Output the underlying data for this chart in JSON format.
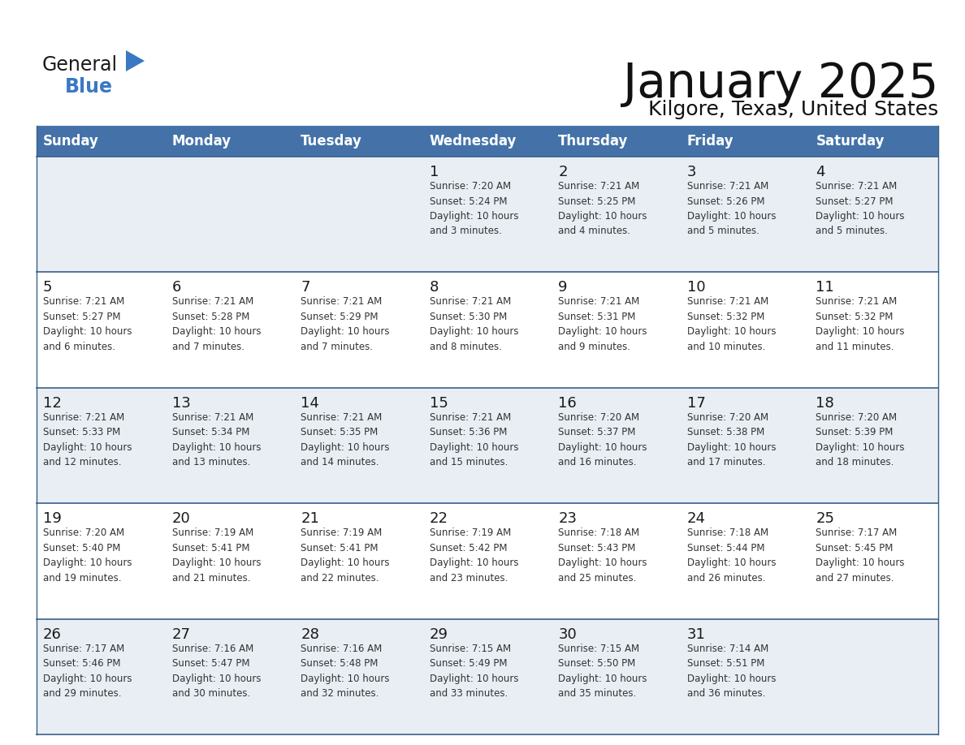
{
  "title": "January 2025",
  "subtitle": "Kilgore, Texas, United States",
  "header_bg": "#4472a8",
  "header_text": "#ffffff",
  "row_bg_odd": "#ffffff",
  "row_bg_even": "#e8eef4",
  "row_border_color": "#3a5f8a",
  "grid_color": "#3a5f8a",
  "day_number_color": "#1a1a1a",
  "info_text_color": "#333333",
  "days_of_week": [
    "Sunday",
    "Monday",
    "Tuesday",
    "Wednesday",
    "Thursday",
    "Friday",
    "Saturday"
  ],
  "weeks": [
    [
      {
        "day": "",
        "info": ""
      },
      {
        "day": "",
        "info": ""
      },
      {
        "day": "",
        "info": ""
      },
      {
        "day": "1",
        "info": "Sunrise: 7:20 AM\nSunset: 5:24 PM\nDaylight: 10 hours\nand 3 minutes."
      },
      {
        "day": "2",
        "info": "Sunrise: 7:21 AM\nSunset: 5:25 PM\nDaylight: 10 hours\nand 4 minutes."
      },
      {
        "day": "3",
        "info": "Sunrise: 7:21 AM\nSunset: 5:26 PM\nDaylight: 10 hours\nand 5 minutes."
      },
      {
        "day": "4",
        "info": "Sunrise: 7:21 AM\nSunset: 5:27 PM\nDaylight: 10 hours\nand 5 minutes."
      }
    ],
    [
      {
        "day": "5",
        "info": "Sunrise: 7:21 AM\nSunset: 5:27 PM\nDaylight: 10 hours\nand 6 minutes."
      },
      {
        "day": "6",
        "info": "Sunrise: 7:21 AM\nSunset: 5:28 PM\nDaylight: 10 hours\nand 7 minutes."
      },
      {
        "day": "7",
        "info": "Sunrise: 7:21 AM\nSunset: 5:29 PM\nDaylight: 10 hours\nand 7 minutes."
      },
      {
        "day": "8",
        "info": "Sunrise: 7:21 AM\nSunset: 5:30 PM\nDaylight: 10 hours\nand 8 minutes."
      },
      {
        "day": "9",
        "info": "Sunrise: 7:21 AM\nSunset: 5:31 PM\nDaylight: 10 hours\nand 9 minutes."
      },
      {
        "day": "10",
        "info": "Sunrise: 7:21 AM\nSunset: 5:32 PM\nDaylight: 10 hours\nand 10 minutes."
      },
      {
        "day": "11",
        "info": "Sunrise: 7:21 AM\nSunset: 5:32 PM\nDaylight: 10 hours\nand 11 minutes."
      }
    ],
    [
      {
        "day": "12",
        "info": "Sunrise: 7:21 AM\nSunset: 5:33 PM\nDaylight: 10 hours\nand 12 minutes."
      },
      {
        "day": "13",
        "info": "Sunrise: 7:21 AM\nSunset: 5:34 PM\nDaylight: 10 hours\nand 13 minutes."
      },
      {
        "day": "14",
        "info": "Sunrise: 7:21 AM\nSunset: 5:35 PM\nDaylight: 10 hours\nand 14 minutes."
      },
      {
        "day": "15",
        "info": "Sunrise: 7:21 AM\nSunset: 5:36 PM\nDaylight: 10 hours\nand 15 minutes."
      },
      {
        "day": "16",
        "info": "Sunrise: 7:20 AM\nSunset: 5:37 PM\nDaylight: 10 hours\nand 16 minutes."
      },
      {
        "day": "17",
        "info": "Sunrise: 7:20 AM\nSunset: 5:38 PM\nDaylight: 10 hours\nand 17 minutes."
      },
      {
        "day": "18",
        "info": "Sunrise: 7:20 AM\nSunset: 5:39 PM\nDaylight: 10 hours\nand 18 minutes."
      }
    ],
    [
      {
        "day": "19",
        "info": "Sunrise: 7:20 AM\nSunset: 5:40 PM\nDaylight: 10 hours\nand 19 minutes."
      },
      {
        "day": "20",
        "info": "Sunrise: 7:19 AM\nSunset: 5:41 PM\nDaylight: 10 hours\nand 21 minutes."
      },
      {
        "day": "21",
        "info": "Sunrise: 7:19 AM\nSunset: 5:41 PM\nDaylight: 10 hours\nand 22 minutes."
      },
      {
        "day": "22",
        "info": "Sunrise: 7:19 AM\nSunset: 5:42 PM\nDaylight: 10 hours\nand 23 minutes."
      },
      {
        "day": "23",
        "info": "Sunrise: 7:18 AM\nSunset: 5:43 PM\nDaylight: 10 hours\nand 25 minutes."
      },
      {
        "day": "24",
        "info": "Sunrise: 7:18 AM\nSunset: 5:44 PM\nDaylight: 10 hours\nand 26 minutes."
      },
      {
        "day": "25",
        "info": "Sunrise: 7:17 AM\nSunset: 5:45 PM\nDaylight: 10 hours\nand 27 minutes."
      }
    ],
    [
      {
        "day": "26",
        "info": "Sunrise: 7:17 AM\nSunset: 5:46 PM\nDaylight: 10 hours\nand 29 minutes."
      },
      {
        "day": "27",
        "info": "Sunrise: 7:16 AM\nSunset: 5:47 PM\nDaylight: 10 hours\nand 30 minutes."
      },
      {
        "day": "28",
        "info": "Sunrise: 7:16 AM\nSunset: 5:48 PM\nDaylight: 10 hours\nand 32 minutes."
      },
      {
        "day": "29",
        "info": "Sunrise: 7:15 AM\nSunset: 5:49 PM\nDaylight: 10 hours\nand 33 minutes."
      },
      {
        "day": "30",
        "info": "Sunrise: 7:15 AM\nSunset: 5:50 PM\nDaylight: 10 hours\nand 35 minutes."
      },
      {
        "day": "31",
        "info": "Sunrise: 7:14 AM\nSunset: 5:51 PM\nDaylight: 10 hours\nand 36 minutes."
      },
      {
        "day": "",
        "info": ""
      }
    ]
  ],
  "logo_text_general": "General",
  "logo_text_blue": "Blue",
  "logo_color_general": "#1a1a1a",
  "logo_color_blue": "#3a78c4",
  "logo_triangle_color": "#3a78c4"
}
